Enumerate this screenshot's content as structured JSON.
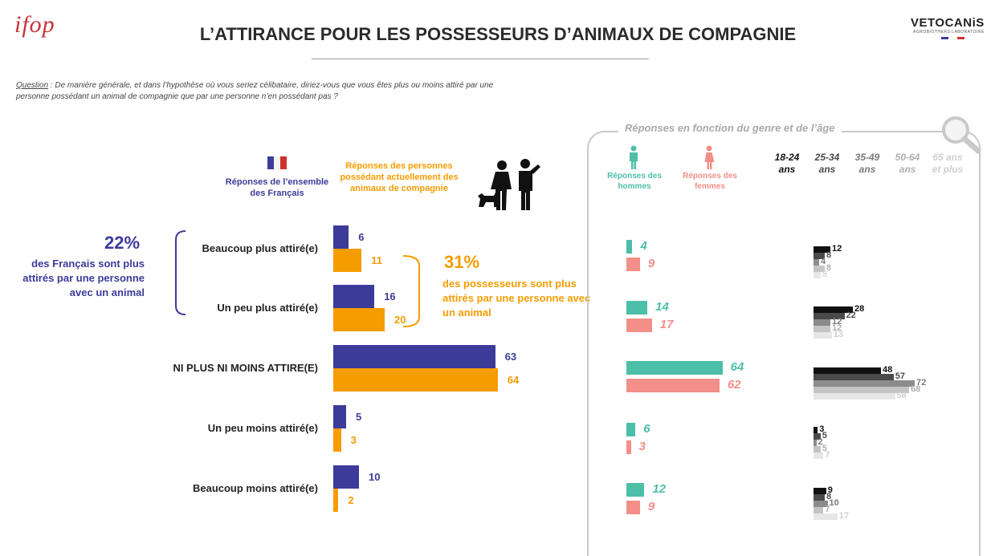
{
  "header": {
    "logo_left": "ifop",
    "title": "L’ATTIRANCE POUR LES POSSESSEURS D’ANIMAUX DE COMPAGNIE",
    "logo_right": "VETOCANiS",
    "logo_right_sub": "AGROBIOTHERS LABORATOIRE"
  },
  "question": {
    "label": "Question",
    "text": " : De manière générale, et dans l’hypothèse où vous seriez célibataire, diriez-vous que vous êtes plus ou moins attiré par une personne possédant un animal de compagnie que par une personne n’en possédant pas ?"
  },
  "legend": {
    "all_french": "Réponses de l’ensemble des Français",
    "owners": "Réponses des personnes possédant actuellement des animaux de compagnie"
  },
  "highlights": {
    "left_pct": "22%",
    "left_text": "des Français sont plus attirés par une personne avec un animal",
    "right_pct": "31%",
    "right_text": "des possesseurs sont plus attirés par une personne avec un animal"
  },
  "panel": {
    "title": "Réponses en fonction du genre et de l’âge",
    "men_label": "Réponses des hommes",
    "women_label": "Réponses des femmes",
    "age_labels": [
      "18-24 ans",
      "25-34 ans",
      "35-49 ans",
      "50-64 ans",
      "65 ans et plus"
    ]
  },
  "colors": {
    "all_french": "#3d3b9a",
    "owners": "#f59c00",
    "men": "#4dbfa8",
    "women": "#f28f88",
    "ages": [
      "#111111",
      "#4a4a4a",
      "#8c8c8c",
      "#c4c4c4",
      "#e6e6e6"
    ],
    "age_labels": [
      "#111111",
      "#4a4a4a",
      "#7a7a7a",
      "#b0b0b0",
      "#d0d0d0"
    ]
  },
  "chart_data": [
    {
      "type": "bar",
      "orientation": "horizontal",
      "categories": [
        "Beaucoup plus attiré(e)",
        "Un peu plus attiré(e)",
        "NI PLUS NI MOINS ATTIRE(E)",
        "Un peu moins attiré(e)",
        "Beaucoup moins attiré(e)"
      ],
      "series": [
        {
          "name": "Réponses de l’ensemble des Français",
          "values": [
            6,
            16,
            63,
            5,
            10
          ]
        },
        {
          "name": "Réponses des personnes possédant actuellement des animaux de compagnie",
          "values": [
            11,
            20,
            64,
            3,
            2
          ]
        }
      ]
    },
    {
      "type": "bar",
      "orientation": "horizontal",
      "categories": [
        "Beaucoup plus attiré(e)",
        "Un peu plus attiré(e)",
        "NI PLUS NI MOINS ATTIRE(E)",
        "Un peu moins attiré(e)",
        "Beaucoup moins attiré(e)"
      ],
      "series": [
        {
          "name": "Réponses des hommes",
          "values": [
            4,
            14,
            64,
            6,
            12
          ]
        },
        {
          "name": "Réponses des femmes",
          "values": [
            9,
            17,
            62,
            3,
            9
          ]
        }
      ]
    },
    {
      "type": "bar",
      "orientation": "horizontal",
      "categories": [
        "Beaucoup plus attiré(e)",
        "Un peu plus attiré(e)",
        "NI PLUS NI MOINS ATTIRE(E)",
        "Un peu moins attiré(e)",
        "Beaucoup moins attiré(e)"
      ],
      "series": [
        {
          "name": "18-24 ans",
          "values": [
            12,
            28,
            48,
            3,
            9
          ]
        },
        {
          "name": "25-34 ans",
          "values": [
            8,
            22,
            57,
            5,
            8
          ]
        },
        {
          "name": "35-49 ans",
          "values": [
            4,
            12,
            72,
            2,
            10
          ]
        },
        {
          "name": "50-64 ans",
          "values": [
            8,
            12,
            68,
            5,
            7
          ]
        },
        {
          "name": "65 ans et plus",
          "values": [
            5,
            13,
            58,
            7,
            17
          ]
        }
      ]
    }
  ]
}
